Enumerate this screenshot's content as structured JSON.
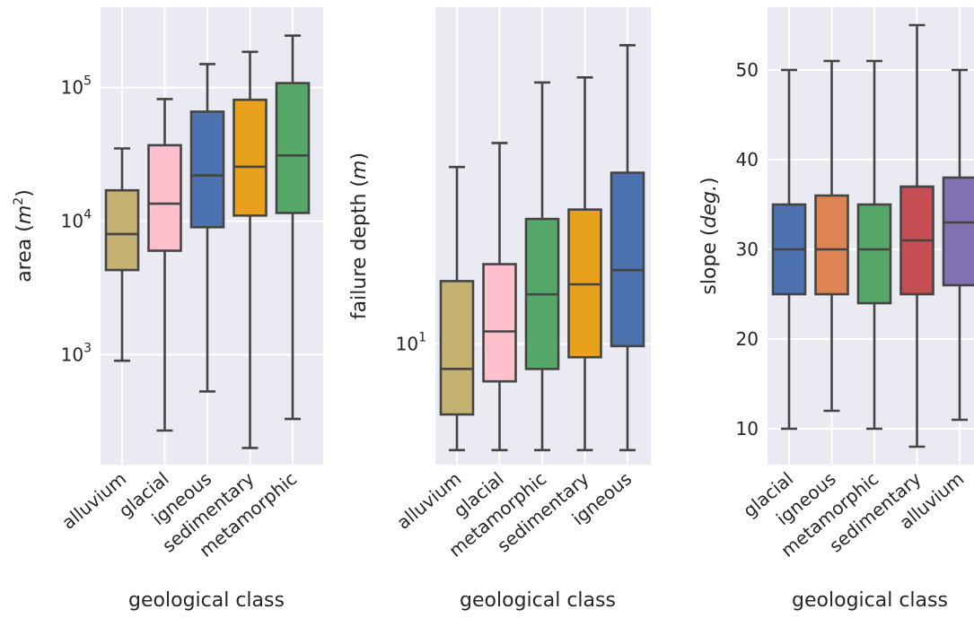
{
  "figure": {
    "background": "#ffffff",
    "panel_bg": "#eaeaf2",
    "grid_color": "#ffffff",
    "box_edge": "#444444"
  },
  "chart_data": [
    {
      "type": "boxplot",
      "ylabel": "area (m²)",
      "ylabel_parts": {
        "text": "area (",
        "math": "m",
        "sup": "2",
        "close": ")"
      },
      "xlabel": "geological class",
      "yscale": "log",
      "ylim": [
        150,
        400000
      ],
      "ytick_values": [
        1000,
        10000,
        100000
      ],
      "ytick_labels": [
        {
          "base": "10",
          "exp": "3"
        },
        {
          "base": "10",
          "exp": "4"
        },
        {
          "base": "10",
          "exp": "5"
        }
      ],
      "grid": true,
      "categories": [
        "alluvium",
        "glacial",
        "igneous",
        "sedimentary",
        "metamorphic"
      ],
      "colors": [
        "#c4b272",
        "#ffc0cb",
        "#4c72b0",
        "#e8a11d",
        "#55a868"
      ],
      "boxes": [
        {
          "whislo": 900,
          "q1": 4300,
          "med": 8000,
          "q3": 17000,
          "whishi": 35000
        },
        {
          "whislo": 270,
          "q1": 6000,
          "med": 13500,
          "q3": 37000,
          "whishi": 82000
        },
        {
          "whislo": 530,
          "q1": 9000,
          "med": 22000,
          "q3": 66000,
          "whishi": 150000
        },
        {
          "whislo": 200,
          "q1": 11000,
          "med": 25500,
          "q3": 81000,
          "whishi": 185000
        },
        {
          "whislo": 330,
          "q1": 11500,
          "med": 31000,
          "q3": 108000,
          "whishi": 245000
        }
      ]
    },
    {
      "type": "boxplot",
      "ylabel": "failure depth (m)",
      "ylabel_parts": {
        "text": "failure depth (",
        "math": "m",
        "sup": "",
        "close": ")"
      },
      "xlabel": "geological class",
      "yscale": "log",
      "ylim": [
        5.7,
        48
      ],
      "ytick_values": [
        10
      ],
      "ytick_labels": [
        {
          "base": "10",
          "exp": "1"
        }
      ],
      "grid": true,
      "categories": [
        "alluvium",
        "glacial",
        "metamorphic",
        "sedimentary",
        "igneous"
      ],
      "colors": [
        "#c4b272",
        "#ffc0cb",
        "#55a868",
        "#e8a11d",
        "#4c72b0"
      ],
      "boxes": [
        {
          "whislo": 6.1,
          "q1": 7.2,
          "med": 8.9,
          "q3": 13.4,
          "whishi": 22.8
        },
        {
          "whislo": 6.1,
          "q1": 8.4,
          "med": 10.6,
          "q3": 14.5,
          "whishi": 25.5
        },
        {
          "whislo": 6.1,
          "q1": 8.9,
          "med": 12.6,
          "q3": 17.9,
          "whishi": 33.8
        },
        {
          "whislo": 6.1,
          "q1": 9.4,
          "med": 13.2,
          "q3": 18.7,
          "whishi": 34.6
        },
        {
          "whislo": 6.1,
          "q1": 9.9,
          "med": 14.1,
          "q3": 22.2,
          "whishi": 40.2
        }
      ]
    },
    {
      "type": "boxplot",
      "ylabel": "slope (deg.)",
      "ylabel_parts": {
        "text": "slope (",
        "math": "deg.",
        "sup": "",
        "close": ")"
      },
      "xlabel": "geological class",
      "yscale": "linear",
      "ylim": [
        6,
        57
      ],
      "ytick_values": [
        10,
        20,
        30,
        40,
        50
      ],
      "ytick_labels": [
        "10",
        "20",
        "30",
        "40",
        "50"
      ],
      "grid": true,
      "categories": [
        "glacial",
        "igneous",
        "metamorphic",
        "sedimentary",
        "alluvium"
      ],
      "colors": [
        "#4c72b0",
        "#dd8452",
        "#55a868",
        "#c44e52",
        "#8172b3"
      ],
      "boxes": [
        {
          "whislo": 10,
          "q1": 25,
          "med": 30,
          "q3": 35,
          "whishi": 50
        },
        {
          "whislo": 12,
          "q1": 25,
          "med": 30,
          "q3": 36,
          "whishi": 51
        },
        {
          "whislo": 10,
          "q1": 24,
          "med": 30,
          "q3": 35,
          "whishi": 51
        },
        {
          "whislo": 8,
          "q1": 25,
          "med": 31,
          "q3": 37,
          "whishi": 55
        },
        {
          "whislo": 11,
          "q1": 26,
          "med": 33,
          "q3": 38,
          "whishi": 50
        }
      ]
    }
  ]
}
